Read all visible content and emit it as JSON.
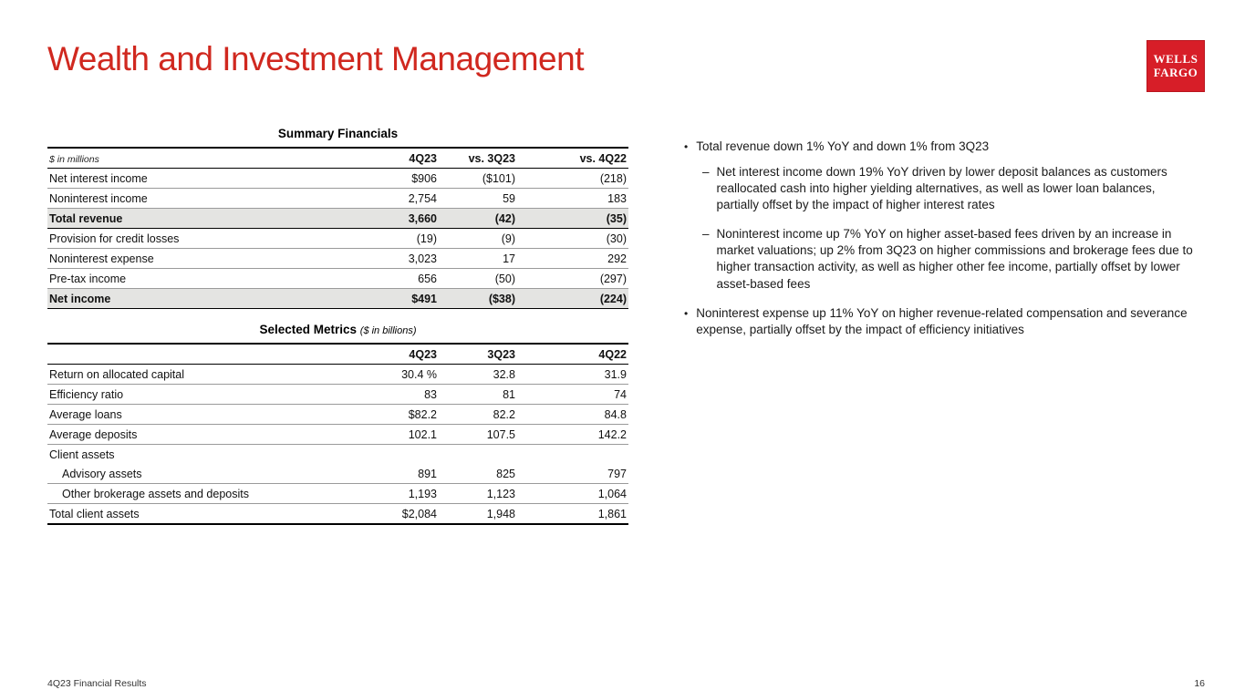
{
  "page": {
    "title": "Wealth and Investment Management",
    "footer_left": "4Q23 Financial Results",
    "page_number": "16",
    "brand": {
      "line1": "WELLS",
      "line2": "FARGO"
    },
    "accent_color": "#d71e28"
  },
  "summary_financials": {
    "title": "Summary Financials",
    "unit_note": "$ in millions",
    "columns": [
      "4Q23",
      "vs. 3Q23",
      "vs. 4Q22"
    ],
    "rows": [
      {
        "label": "Net interest income",
        "values": [
          "$906",
          "($101)",
          "(218)"
        ],
        "bold": false
      },
      {
        "label": "Noninterest income",
        "values": [
          "2,754",
          "59",
          "183"
        ],
        "bold": false
      },
      {
        "label": "Total revenue",
        "values": [
          "3,660",
          "(42)",
          "(35)"
        ],
        "bold": true
      },
      {
        "label": "Provision for credit losses",
        "values": [
          "(19)",
          "(9)",
          "(30)"
        ],
        "bold": false
      },
      {
        "label": "Noninterest expense",
        "values": [
          "3,023",
          "17",
          "292"
        ],
        "bold": false
      },
      {
        "label": "Pre-tax income",
        "values": [
          "656",
          "(50)",
          "(297)"
        ],
        "bold": false
      },
      {
        "label": "Net income",
        "values": [
          "$491",
          "($38)",
          "(224)"
        ],
        "bold": true
      }
    ]
  },
  "selected_metrics": {
    "title": "Selected Metrics",
    "title_note": "($ in billions)",
    "columns": [
      "4Q23",
      "3Q23",
      "4Q22"
    ],
    "rows": [
      {
        "label": "Return on allocated capital",
        "values": [
          "30.4 %",
          "32.8",
          "31.9"
        ]
      },
      {
        "label": "Efficiency ratio",
        "values": [
          "83",
          "81",
          "74"
        ]
      },
      {
        "label": "Average loans",
        "values": [
          "$82.2",
          "82.2",
          "84.8"
        ]
      },
      {
        "label": "Average deposits",
        "values": [
          "102.1",
          "107.5",
          "142.2"
        ]
      },
      {
        "label": "Client assets",
        "values": [
          "",
          "",
          ""
        ],
        "no_border": true
      },
      {
        "label": "Advisory assets",
        "values": [
          "891",
          "825",
          "797"
        ],
        "indent": true
      },
      {
        "label": "Other brokerage assets and deposits",
        "values": [
          "1,193",
          "1,123",
          "1,064"
        ],
        "indent": true
      },
      {
        "label": "Total client assets",
        "values": [
          "$2,084",
          "1,948",
          "1,861"
        ],
        "total": true
      }
    ]
  },
  "commentary": [
    {
      "text": "Total revenue down 1% YoY and down 1% from 3Q23",
      "subbullets": [
        "Net interest income down 19% YoY driven by lower deposit balances as customers reallocated cash into higher yielding alternatives, as well as lower loan balances, partially offset by the impact of higher interest rates",
        "Noninterest income up 7% YoY on higher asset-based fees driven by an increase in market valuations; up 2% from 3Q23 on higher commissions and brokerage fees due to higher transaction activity, as well as higher other fee income, partially offset by lower asset-based fees"
      ]
    },
    {
      "text": "Noninterest expense up 11% YoY on higher revenue-related compensation and severance expense, partially offset by the impact of efficiency initiatives",
      "subbullets": []
    }
  ]
}
